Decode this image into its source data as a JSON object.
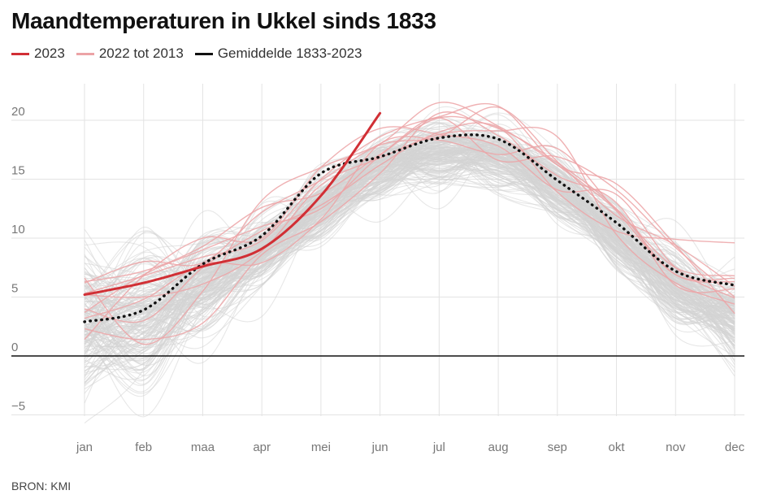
{
  "header": {
    "title": "Maandtemperaturen in Ukkel sinds 1833"
  },
  "legend": [
    {
      "label": "2023",
      "color": "#d12f35"
    },
    {
      "label": "2022 tot 2013",
      "color": "#eca3a6"
    },
    {
      "label": "Gemiddelde 1833-2023",
      "color": "#111111"
    }
  ],
  "source": "BRON: KMI",
  "chart_data": {
    "type": "line",
    "title": "Maandtemperaturen in Ukkel sinds 1833",
    "xlabel": "",
    "ylabel": "",
    "categories": [
      "jan",
      "feb",
      "maa",
      "apr",
      "mei",
      "jun",
      "jul",
      "aug",
      "sep",
      "okt",
      "nov",
      "dec"
    ],
    "ylim": [
      -6,
      23
    ],
    "yticks": [
      -5,
      0,
      5,
      10,
      15,
      20
    ],
    "ytick_labels": [
      "−5",
      "0",
      "5",
      "10",
      "15",
      "20"
    ],
    "grid": true,
    "series": [
      {
        "name": "2023",
        "color": "#d12f35",
        "style": "solid",
        "values": [
          5.2,
          6.2,
          7.6,
          9.1,
          13.6,
          20.6,
          null,
          null,
          null,
          null,
          null,
          null
        ]
      },
      {
        "name": "Gemiddelde 1833-2023",
        "color": "#111111",
        "style": "dotted",
        "values": [
          2.9,
          3.9,
          7.8,
          10.2,
          15.5,
          16.9,
          18.5,
          18.4,
          14.9,
          11.3,
          7.2,
          6.0
        ]
      },
      {
        "name": "2022",
        "color": "#eca3a6",
        "style": "solid",
        "values": [
          5.3,
          6.8,
          8.4,
          9.8,
          15.0,
          18.6,
          20.3,
          21.2,
          16.2,
          14.6,
          9.4,
          3.6
        ]
      },
      {
        "name": "2021",
        "color": "#eca3a6",
        "style": "solid",
        "values": [
          3.2,
          4.8,
          7.8,
          7.9,
          11.6,
          18.0,
          18.3,
          17.1,
          17.6,
          12.3,
          6.9,
          6.6
        ]
      },
      {
        "name": "2020",
        "color": "#eca3a6",
        "style": "solid",
        "values": [
          6.2,
          8.0,
          7.9,
          12.2,
          14.9,
          17.9,
          18.6,
          21.1,
          16.5,
          11.9,
          9.4,
          5.9
        ]
      },
      {
        "name": "2019",
        "color": "#eca3a6",
        "style": "solid",
        "values": [
          3.7,
          6.9,
          9.0,
          11.0,
          12.5,
          17.0,
          20.2,
          19.3,
          16.4,
          12.5,
          6.9,
          6.3
        ]
      },
      {
        "name": "2018",
        "color": "#eca3a6",
        "style": "solid",
        "values": [
          6.6,
          1.0,
          5.5,
          13.2,
          16.0,
          18.0,
          21.5,
          19.5,
          16.2,
          12.4,
          7.5,
          6.8
        ]
      },
      {
        "name": "2017",
        "color": "#eca3a6",
        "style": "solid",
        "values": [
          1.4,
          6.8,
          10.0,
          10.0,
          16.0,
          19.3,
          18.8,
          17.8,
          14.1,
          13.7,
          7.5,
          4.9
        ]
      },
      {
        "name": "2016",
        "color": "#eca3a6",
        "style": "solid",
        "values": [
          5.2,
          5.0,
          6.1,
          8.9,
          14.5,
          16.8,
          18.8,
          19.1,
          18.6,
          10.3,
          6.2,
          4.4
        ]
      },
      {
        "name": "2015",
        "color": "#eca3a6",
        "style": "solid",
        "values": [
          4.0,
          3.0,
          7.5,
          10.6,
          12.8,
          16.2,
          19.0,
          19.4,
          13.9,
          10.6,
          9.9,
          9.6
        ]
      },
      {
        "name": "2014",
        "color": "#eca3a6",
        "style": "solid",
        "values": [
          6.3,
          7.2,
          9.3,
          12.6,
          13.8,
          17.1,
          20.2,
          16.6,
          16.9,
          14.1,
          9.2,
          5.0
        ]
      },
      {
        "name": "2013",
        "color": "#eca3a6",
        "style": "solid",
        "values": [
          2.3,
          1.4,
          2.8,
          8.6,
          11.4,
          15.5,
          20.6,
          18.7,
          15.3,
          13.0,
          6.0,
          5.7
        ]
      }
    ],
    "background_series": {
      "name": "1833-2012",
      "color": "#d3d3d3",
      "count": 180,
      "monthly_mean": [
        2.5,
        3.4,
        5.9,
        8.9,
        12.7,
        15.8,
        17.3,
        16.9,
        14.3,
        10.3,
        5.8,
        3.2
      ],
      "monthly_spread": [
        2.9,
        2.9,
        2.0,
        1.4,
        1.4,
        1.2,
        1.3,
        1.2,
        1.2,
        1.4,
        1.6,
        2.2
      ]
    }
  }
}
